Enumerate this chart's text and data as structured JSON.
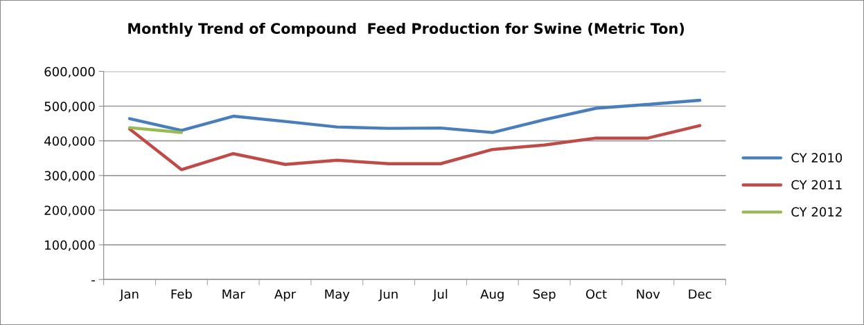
{
  "chart_data": {
    "type": "line",
    "title": "Monthly Trend of Compound  Feed Production for Swine (Metric Ton)",
    "categories": [
      "Jan",
      "Feb",
      "Mar",
      "Apr",
      "May",
      "Jun",
      "Jul",
      "Aug",
      "Sep",
      "Oct",
      "Nov",
      "Dec"
    ],
    "series": [
      {
        "name": "CY 2010",
        "color": "#4a7ebb",
        "values": [
          464000,
          430000,
          471000,
          456000,
          440000,
          436000,
          437000,
          424000,
          461000,
          494000,
          505000,
          517000
        ]
      },
      {
        "name": "CY 2011",
        "color": "#be4b48",
        "values": [
          434000,
          317000,
          363000,
          332000,
          344000,
          334000,
          334000,
          375000,
          388000,
          408000,
          408000,
          444000
        ]
      },
      {
        "name": "CY 2012",
        "color": "#98b954",
        "values": [
          438000,
          424000,
          null,
          null,
          null,
          null,
          null,
          null,
          null,
          null,
          null,
          null
        ]
      }
    ],
    "ylim": [
      0,
      600000
    ],
    "yticks": [
      {
        "value": 0,
        "label": "-"
      },
      {
        "value": 100000,
        "label": "100,000"
      },
      {
        "value": 200000,
        "label": "200,000"
      },
      {
        "value": 300000,
        "label": "300,000"
      },
      {
        "value": 400000,
        "label": "400,000"
      },
      {
        "value": 500000,
        "label": "500,000"
      },
      {
        "value": 600000,
        "label": "600,000"
      }
    ],
    "grid": "y",
    "legend": "right",
    "marker": "none",
    "line_style": "solid"
  }
}
